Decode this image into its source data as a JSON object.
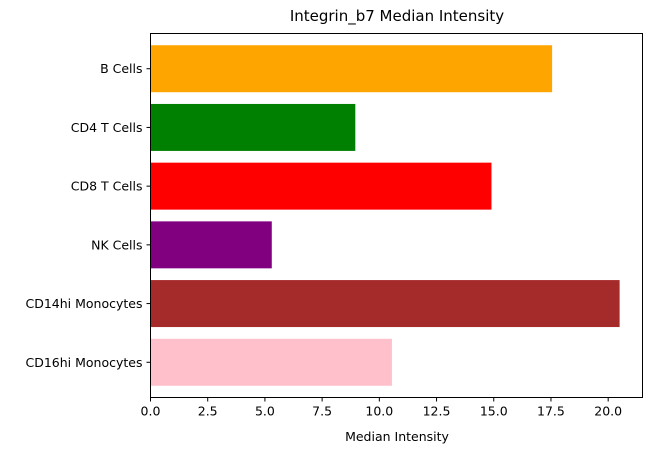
{
  "chart_data": {
    "type": "bar",
    "orientation": "horizontal",
    "title": "Integrin_b7 Median Intensity",
    "xlabel": "Median Intensity",
    "ylabel": "",
    "categories": [
      "B Cells",
      "CD4 T Cells",
      "CD8 T Cells",
      "NK Cells",
      "CD14hi Monocytes",
      "CD16hi Monocytes"
    ],
    "values": [
      17.55,
      8.95,
      14.9,
      5.3,
      20.5,
      10.55
    ],
    "colors": [
      "#ffa500",
      "#008000",
      "#ff0000",
      "#800080",
      "#a52a2a",
      "#ffc0cb"
    ],
    "xlim": [
      0,
      21.5
    ],
    "xticks": [
      0,
      2.5,
      5,
      7.5,
      10,
      12.5,
      15,
      17.5,
      20
    ],
    "xtick_labels": [
      "0.0",
      "2.5",
      "5.0",
      "7.5",
      "10.0",
      "12.5",
      "15.0",
      "17.5",
      "20.0"
    ],
    "grid": false,
    "legend": "none"
  }
}
